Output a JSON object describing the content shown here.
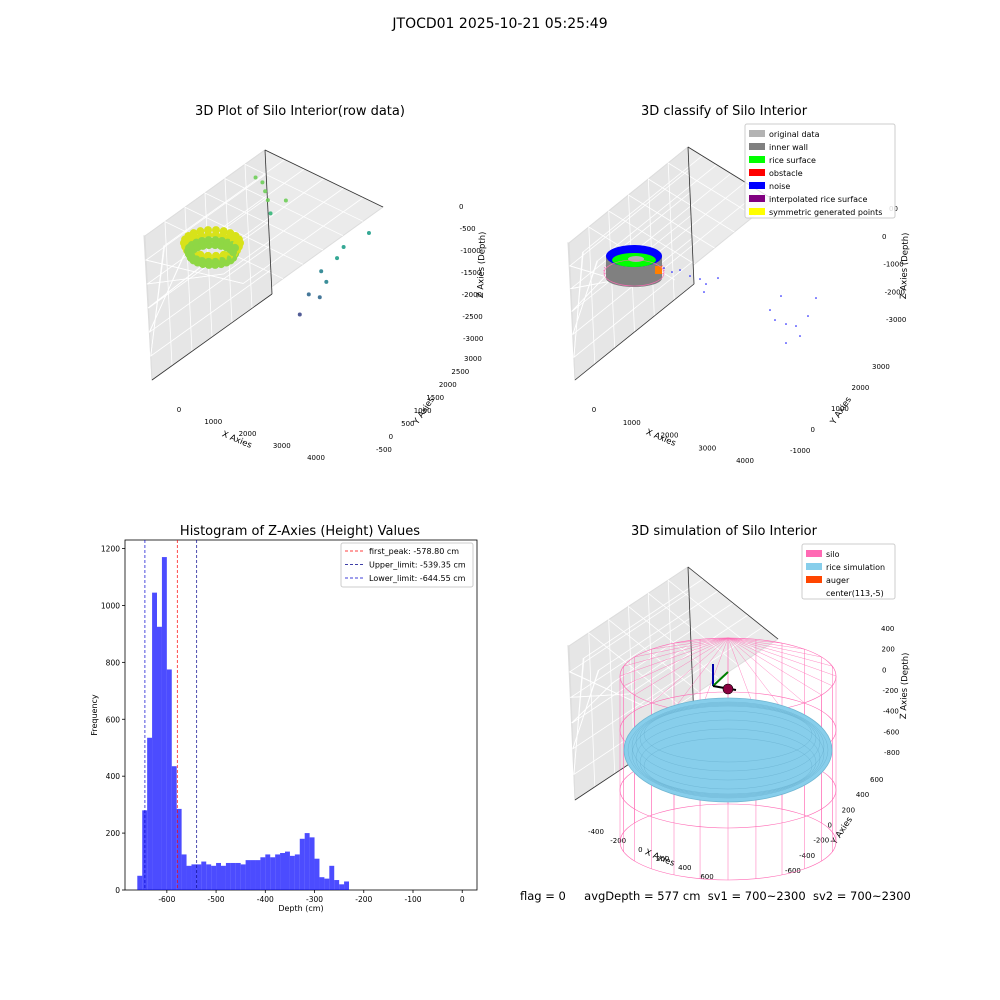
{
  "figure": {
    "title": "JTOCD01 2025-10-21 05:25:49",
    "status_line": {
      "flag": "flag = 0",
      "avg_depth": "avgDepth = 577 cm",
      "sv1": "sv1 = 700~2300",
      "sv2": "sv2 = 700~2300"
    }
  },
  "chart_data": [
    {
      "type": "scatter3d",
      "title": "3D Plot of Silo Interior(row data)",
      "xlabel": "X Axies",
      "ylabel": "Y Axies",
      "zlabel": "Z Axies (Depth)",
      "x_ticks": [
        "0",
        "1000",
        "2000",
        "3000",
        "4000"
      ],
      "y_ticks": [
        "-500",
        "0",
        "500",
        "1000",
        "1500",
        "2000",
        "2500",
        "3000"
      ],
      "z_ticks": [
        "0",
        "-500",
        "-1000",
        "-1500",
        "-2000",
        "-2500",
        "-3000"
      ],
      "colormap": [
        "#fde725",
        "#b5de2b",
        "#6ece58",
        "#35b779",
        "#1f9e89",
        "#26828e",
        "#31688e",
        "#3e4989",
        "#482878"
      ],
      "points": [
        {
          "x": 250,
          "y": 2300,
          "z": -600
        },
        {
          "x": 450,
          "y": 2300,
          "z": -650
        },
        {
          "x": 600,
          "y": 2200,
          "z": -750
        },
        {
          "x": 750,
          "y": 2100,
          "z": -850
        },
        {
          "x": 1100,
          "y": 2350,
          "z": -900
        },
        {
          "x": 900,
          "y": 2000,
          "z": -1050
        },
        {
          "x": 3100,
          "y": 2950,
          "z": -1400
        },
        {
          "x": 2750,
          "y": 2400,
          "z": -1500
        },
        {
          "x": 2700,
          "y": 2200,
          "z": -1650
        },
        {
          "x": 2450,
          "y": 1900,
          "z": -1850
        },
        {
          "x": 2600,
          "y": 1900,
          "z": -2050
        },
        {
          "x": 2300,
          "y": 1600,
          "z": -2250
        },
        {
          "x": 2550,
          "y": 1700,
          "z": -2300
        },
        {
          "x": 2250,
          "y": 1300,
          "z": -2550
        }
      ],
      "cluster_note": ""
    },
    {
      "type": "scatter3d",
      "title": "3D classify of Silo Interior",
      "xlabel": "X Axies",
      "ylabel": "Y Axies",
      "zlabel": "Z Axies (Depth)",
      "x_ticks": [
        "0",
        "1000",
        "2000",
        "3000",
        "4000"
      ],
      "y_ticks": [
        "-1000",
        "0",
        "1000",
        "2000",
        "3000"
      ],
      "z_ticks": [
        "0",
        "-1000",
        "-2000",
        "-3000"
      ],
      "z_ticks_partial": [
        "00"
      ],
      "legend": {
        "placement": "top-right",
        "entries": [
          {
            "label": "original data",
            "color": "#b3b3b3"
          },
          {
            "label": "inner wall",
            "color": "#808080"
          },
          {
            "label": "rice surface",
            "color": "#00ff00"
          },
          {
            "label": "obstacle",
            "color": "#ff0000"
          },
          {
            "label": "noise",
            "color": "#0000ff"
          },
          {
            "label": "interpolated rice surface",
            "color": "#800080"
          },
          {
            "label": "symmetric generated points",
            "color": "#ffff00"
          }
        ]
      }
    },
    {
      "type": "bar",
      "title": "Histogram of Z-Axies (Height) Values",
      "xlabel": "Depth (cm)",
      "ylabel": "Frequency",
      "xlim": [
        -685,
        30
      ],
      "ylim": [
        0,
        1230
      ],
      "x_ticks": [
        -600,
        -500,
        -400,
        -300,
        -200,
        -100,
        0
      ],
      "y_ticks": [
        0,
        200,
        400,
        600,
        800,
        1000,
        1200
      ],
      "bar_color": "#0000ff",
      "bin_start": -660,
      "bin_width": 10,
      "values": [
        50,
        280,
        535,
        1045,
        925,
        1170,
        775,
        435,
        285,
        125,
        85,
        90,
        90,
        100,
        90,
        85,
        95,
        85,
        95,
        95,
        95,
        90,
        105,
        105,
        105,
        115,
        125,
        115,
        125,
        130,
        135,
        120,
        125,
        180,
        200,
        185,
        110,
        45,
        40,
        85,
        35,
        20,
        30
      ],
      "vlines": [
        {
          "x": -578.8,
          "label": "first_peak: -578.80 cm",
          "color": "#ff0000"
        },
        {
          "x": -539.35,
          "label": "Upper_limit: -539.35 cm",
          "color": "#00008b"
        },
        {
          "x": -644.55,
          "label": "Lower_limit: -644.55 cm",
          "color": "#0000cd"
        }
      ],
      "legend_placement": "top-right"
    },
    {
      "type": "surface3d",
      "title": "3D simulation of Silo Interior",
      "xlabel": "X Axies",
      "ylabel": "Y Axies",
      "zlabel": "Z Axies (Depth)",
      "x_ticks": [
        "-400",
        "-200",
        "0",
        "200",
        "400",
        "600"
      ],
      "y_ticks": [
        "-600",
        "-400",
        "-200",
        "0",
        "200",
        "400",
        "600"
      ],
      "z_ticks": [
        "400",
        "200",
        "0",
        "-200",
        "-400",
        "-600",
        "-800"
      ],
      "legend": {
        "placement": "top-right",
        "entries": [
          {
            "label": "silo",
            "color": "#ff69b4"
          },
          {
            "label": "rice simulation",
            "color": "#87ceeb"
          },
          {
            "label": "auger",
            "color": "#ff4500"
          },
          {
            "label": "center(113,-5)",
            "color": "#ffffff"
          }
        ]
      }
    }
  ]
}
